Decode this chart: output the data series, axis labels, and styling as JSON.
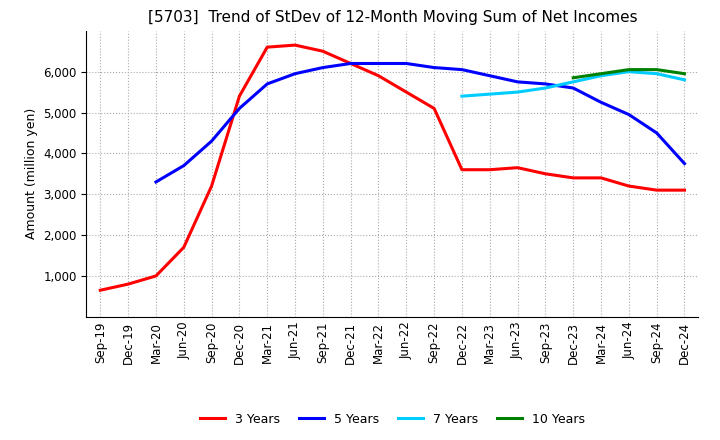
{
  "title": "[5703]  Trend of StDev of 12-Month Moving Sum of Net Incomes",
  "ylabel": "Amount (million yen)",
  "ylim": [
    0,
    7000
  ],
  "yticks": [
    1000,
    2000,
    3000,
    4000,
    5000,
    6000
  ],
  "legend_labels": [
    "3 Years",
    "5 Years",
    "7 Years",
    "10 Years"
  ],
  "line_colors": [
    "#ff0000",
    "#0000ff",
    "#00ccff",
    "#008000"
  ],
  "dates": [
    "Sep-19",
    "Dec-19",
    "Mar-20",
    "Jun-20",
    "Sep-20",
    "Dec-20",
    "Mar-21",
    "Jun-21",
    "Sep-21",
    "Dec-21",
    "Mar-22",
    "Jun-22",
    "Sep-22",
    "Dec-22",
    "Mar-23",
    "Jun-23",
    "Sep-23",
    "Dec-23",
    "Mar-24",
    "Jun-24",
    "Sep-24",
    "Dec-24"
  ],
  "series_3y": [
    650,
    800,
    1000,
    1700,
    3200,
    5400,
    6600,
    6650,
    6500,
    6200,
    5900,
    5500,
    5100,
    3600,
    3600,
    3650,
    3500,
    3400,
    3400,
    3200,
    3100,
    3100
  ],
  "series_5y": [
    null,
    null,
    3300,
    3700,
    4300,
    5100,
    5700,
    5950,
    6100,
    6200,
    6200,
    6200,
    6100,
    6050,
    5900,
    5750,
    5700,
    5600,
    5250,
    4950,
    4500,
    3750
  ],
  "series_7y": [
    null,
    null,
    null,
    null,
    null,
    null,
    null,
    null,
    null,
    null,
    null,
    null,
    null,
    5400,
    5450,
    5500,
    5600,
    5750,
    5900,
    6000,
    5950,
    5800
  ],
  "series_10y": [
    null,
    null,
    null,
    null,
    null,
    null,
    null,
    null,
    null,
    null,
    null,
    null,
    null,
    null,
    null,
    null,
    null,
    5850,
    5950,
    6050,
    6050,
    5950
  ],
  "grid_color": "#aaaaaa",
  "background_color": "#ffffff",
  "title_fontsize": 11,
  "axis_fontsize": 9,
  "tick_fontsize": 8.5
}
